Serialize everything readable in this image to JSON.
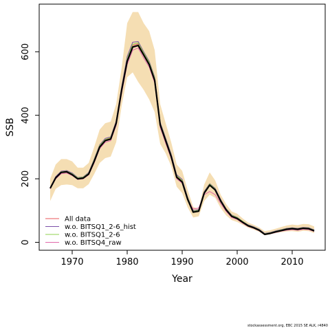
{
  "chart_data": {
    "type": "line",
    "title": "",
    "xlabel": "Year",
    "ylabel": "SSB",
    "xlim": [
      1964,
      2016
    ],
    "ylim": [
      -25,
      750
    ],
    "xticks": [
      1970,
      1980,
      1990,
      2000,
      2010
    ],
    "yticks": [
      0,
      200,
      400,
      600
    ],
    "grid": false,
    "legend_position": "bottom-left",
    "band": {
      "color": "#f5deb3",
      "x": [
        1966,
        1967,
        1968,
        1969,
        1970,
        1971,
        1972,
        1973,
        1974,
        1975,
        1976,
        1977,
        1978,
        1979,
        1980,
        1981,
        1982,
        1983,
        1984,
        1985,
        1986,
        1987,
        1988,
        1989,
        1990,
        1991,
        1992,
        1993,
        1994,
        1995,
        1996,
        1997,
        1998,
        1999,
        2000,
        2001,
        2002,
        2003,
        2004,
        2005,
        2006,
        2007,
        2008,
        2009,
        2010,
        2011,
        2012,
        2013,
        2014
      ],
      "upper": [
        200,
        245,
        262,
        262,
        255,
        235,
        235,
        250,
        300,
        355,
        375,
        380,
        435,
        550,
        690,
        725,
        725,
        690,
        665,
        605,
        435,
        375,
        315,
        245,
        225,
        165,
        112,
        105,
        182,
        220,
        195,
        150,
        120,
        97,
        90,
        75,
        62,
        55,
        47,
        35,
        38,
        43,
        48,
        53,
        56,
        54,
        58,
        57,
        50
      ],
      "lower": [
        130,
        168,
        180,
        182,
        180,
        170,
        170,
        183,
        215,
        250,
        265,
        270,
        315,
        430,
        520,
        535,
        505,
        480,
        450,
        410,
        310,
        280,
        240,
        175,
        155,
        110,
        78,
        82,
        130,
        150,
        140,
        108,
        85,
        70,
        64,
        55,
        46,
        40,
        33,
        22,
        25,
        29,
        32,
        34,
        35,
        33,
        36,
        35,
        29
      ]
    },
    "x": [
      1966,
      1967,
      1968,
      1969,
      1970,
      1971,
      1972,
      1973,
      1974,
      1975,
      1976,
      1977,
      1978,
      1979,
      1980,
      1981,
      1982,
      1983,
      1984,
      1985,
      1986,
      1987,
      1988,
      1989,
      1990,
      1991,
      1992,
      1993,
      1994,
      1995,
      1996,
      1997,
      1998,
      1999,
      2000,
      2001,
      2002,
      2003,
      2004,
      2005,
      2006,
      2007,
      2008,
      2009,
      2010,
      2011,
      2012,
      2013,
      2014
    ],
    "series": [
      {
        "name": "",
        "color": "#000000",
        "width": 2.2,
        "values": [
          170,
          203,
          220,
          222,
          213,
          200,
          202,
          215,
          255,
          300,
          320,
          325,
          375,
          480,
          570,
          615,
          620,
          590,
          560,
          510,
          370,
          320,
          270,
          205,
          190,
          135,
          95,
          98,
          155,
          180,
          165,
          130,
          102,
          82,
          75,
          63,
          52,
          46,
          38,
          25,
          28,
          33,
          37,
          41,
          43,
          41,
          44,
          43,
          36
        ]
      },
      {
        "name": "All data",
        "color": "#e8545a",
        "width": 1,
        "values": [
          170,
          205,
          221,
          223,
          215,
          202,
          204,
          217,
          258,
          303,
          323,
          328,
          377,
          482,
          574,
          620,
          625,
          594,
          564,
          514,
          373,
          323,
          273,
          208,
          193,
          138,
          97,
          100,
          157,
          183,
          167,
          132,
          104,
          84,
          77,
          65,
          54,
          48,
          40,
          27,
          30,
          35,
          39,
          43,
          44,
          42,
          45,
          44,
          37
        ]
      },
      {
        "name": "w.o. BITSQ1_2-6_hist",
        "color": "#7b4fa8",
        "width": 1,
        "values": [
          172,
          207,
          224,
          226,
          218,
          204,
          206,
          220,
          262,
          307,
          327,
          332,
          382,
          490,
          585,
          630,
          632,
          600,
          570,
          520,
          378,
          328,
          278,
          213,
          198,
          142,
          100,
          103,
          160,
          185,
          170,
          135,
          106,
          86,
          79,
          66,
          55,
          49,
          41,
          28,
          31,
          36,
          40,
          44,
          46,
          44,
          47,
          46,
          39
        ]
      },
      {
        "name": "w.o. BITSQ1_2-6",
        "color": "#8fd14f",
        "width": 1,
        "values": [
          171,
          205,
          222,
          224,
          216,
          203,
          205,
          218,
          260,
          305,
          324,
          330,
          379,
          485,
          578,
          624,
          628,
          597,
          567,
          517,
          375,
          325,
          275,
          210,
          195,
          140,
          98,
          101,
          158,
          184,
          168,
          133,
          105,
          85,
          78,
          66,
          54,
          48,
          40,
          27,
          30,
          35,
          39,
          43,
          45,
          43,
          46,
          45,
          38
        ]
      },
      {
        "name": "w.o. BITSQ4_raw",
        "color": "#e066a8",
        "width": 1,
        "values": [
          168,
          200,
          216,
          218,
          210,
          198,
          200,
          212,
          250,
          295,
          315,
          320,
          368,
          470,
          560,
          605,
          612,
          580,
          552,
          502,
          362,
          312,
          264,
          200,
          186,
          132,
          105,
          108,
          150,
          160,
          150,
          122,
          97,
          78,
          72,
          60,
          50,
          44,
          36,
          24,
          27,
          31,
          35,
          38,
          40,
          38,
          41,
          40,
          34
        ]
      }
    ]
  },
  "footer": {
    "credit": "stockassessment.org, EBC 2015 SE ALK, r4840"
  }
}
